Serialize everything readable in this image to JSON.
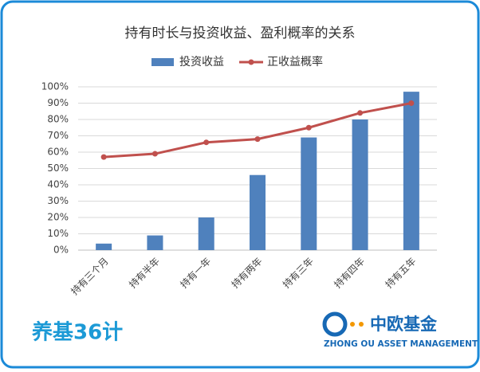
{
  "chart_data": {
    "type": "bar-line",
    "title": "持有时长与投资收益、盈利概率的关系",
    "categories": [
      "持有三个月",
      "持有半年",
      "持有一年",
      "持有两年",
      "持有三年",
      "持有四年",
      "持有五年"
    ],
    "series": [
      {
        "name": "投资收益",
        "type": "bar",
        "color": "#4f81bd",
        "values": [
          4,
          9,
          20,
          46,
          69,
          80,
          97
        ]
      },
      {
        "name": "正收益概率",
        "type": "line",
        "color": "#c0504d",
        "values": [
          57,
          59,
          66,
          68,
          75,
          84,
          90
        ]
      }
    ],
    "ylim": [
      0,
      100
    ],
    "yticks": [
      {
        "value": 0,
        "label": "0%"
      },
      {
        "value": 10,
        "label": "10%"
      },
      {
        "value": 20,
        "label": "20%"
      },
      {
        "value": 30,
        "label": "30%"
      },
      {
        "value": 40,
        "label": "40%"
      },
      {
        "value": 50,
        "label": "50%"
      },
      {
        "value": 60,
        "label": "60%"
      },
      {
        "value": 70,
        "label": "70%"
      },
      {
        "value": 80,
        "label": "80%"
      },
      {
        "value": 90,
        "label": "90%"
      },
      {
        "value": 100,
        "label": "100%"
      }
    ],
    "grid": true,
    "legend": "top"
  },
  "logos": {
    "left": "养基36计",
    "right": "中欧基金",
    "right_subtitle": "ZHONG OU ASSET MANAGEMENT"
  }
}
